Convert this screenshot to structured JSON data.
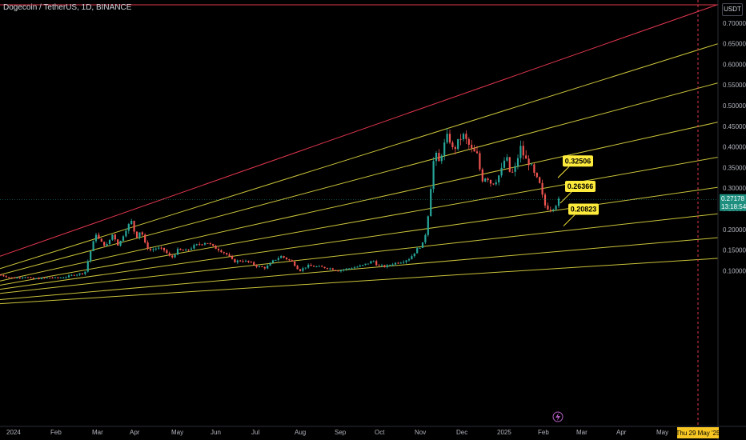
{
  "header": {
    "title": "Dogecoin / TetherUS, 1D, BINANCE",
    "unit": "USDT"
  },
  "colors": {
    "background": "#000000",
    "up": "#26a69a",
    "down": "#ef5350",
    "channel": "#c9c23a",
    "upper_line": "#e0374e",
    "cursor": "#e0374e",
    "annotation_bg": "#ffeb3b",
    "current_price_bg": "#1e8f7f",
    "date_badge_bg": "#f7c623"
  },
  "chart_data": {
    "type": "candlestick",
    "x_ticks": [
      "2024",
      "Feb",
      "Mar",
      "Apr",
      "May",
      "Jun",
      "Jul",
      "Aug",
      "Sep",
      "Oct",
      "Nov",
      "Dec",
      "2025",
      "Feb",
      "Mar",
      "Apr",
      "May"
    ],
    "y_ticks": [
      "0.70000",
      "0.65000",
      "0.60000",
      "0.55000",
      "0.50000",
      "0.45000",
      "0.40000",
      "0.35000",
      "0.30000",
      "0.25000",
      "0.20000",
      "0.15000",
      "0.10000"
    ],
    "ylim": [
      0.06,
      0.75
    ],
    "current_price": {
      "value": "0.27178",
      "countdown": "13:18:54"
    },
    "cursor_date": "Thu 29 May '25",
    "annotations": [
      {
        "label": "0.32506",
        "value": 0.32506
      },
      {
        "label": "0.26366",
        "value": 0.26366
      },
      {
        "label": "0.20823",
        "value": 0.20823
      }
    ],
    "trend_lines": [
      {
        "color": "upper",
        "start": 0.135,
        "end": 0.745
      },
      {
        "color": "channel",
        "start": 0.105,
        "end": 0.65
      },
      {
        "color": "channel",
        "start": 0.09,
        "end": 0.555
      },
      {
        "color": "channel",
        "start": 0.075,
        "end": 0.46
      },
      {
        "color": "channel",
        "start": 0.065,
        "end": 0.375
      },
      {
        "color": "channel",
        "start": 0.055,
        "end": 0.302
      },
      {
        "color": "channel",
        "start": 0.045,
        "end": 0.238
      },
      {
        "color": "channel",
        "start": 0.03,
        "end": 0.18
      },
      {
        "color": "channel",
        "start": 0.02,
        "end": 0.13
      }
    ],
    "price_path": [
      [
        0,
        0.09
      ],
      [
        16,
        0.082
      ],
      [
        31,
        0.086
      ],
      [
        40,
        0.08
      ],
      [
        55,
        0.082
      ],
      [
        64,
        0.084
      ],
      [
        70,
        0.082
      ],
      [
        82,
        0.085
      ],
      [
        92,
        0.09
      ],
      [
        106,
        0.095
      ],
      [
        112,
        0.14
      ],
      [
        120,
        0.19
      ],
      [
        125,
        0.17
      ],
      [
        133,
        0.16
      ],
      [
        141,
        0.19
      ],
      [
        148,
        0.16
      ],
      [
        157,
        0.2
      ],
      [
        164,
        0.22
      ],
      [
        170,
        0.18
      ],
      [
        176,
        0.2
      ],
      [
        182,
        0.16
      ],
      [
        188,
        0.15
      ],
      [
        196,
        0.155
      ],
      [
        205,
        0.15
      ],
      [
        214,
        0.13
      ],
      [
        222,
        0.15
      ],
      [
        232,
        0.148
      ],
      [
        243,
        0.16
      ],
      [
        250,
        0.165
      ],
      [
        258,
        0.17
      ],
      [
        266,
        0.158
      ],
      [
        275,
        0.15
      ],
      [
        283,
        0.14
      ],
      [
        292,
        0.122
      ],
      [
        302,
        0.125
      ],
      [
        312,
        0.12
      ],
      [
        322,
        0.11
      ],
      [
        332,
        0.107
      ],
      [
        342,
        0.125
      ],
      [
        351,
        0.135
      ],
      [
        357,
        0.13
      ],
      [
        366,
        0.12
      ],
      [
        374,
        0.1
      ],
      [
        384,
        0.112
      ],
      [
        394,
        0.11
      ],
      [
        404,
        0.108
      ],
      [
        414,
        0.105
      ],
      [
        422,
        0.1
      ],
      [
        432,
        0.104
      ],
      [
        442,
        0.108
      ],
      [
        452,
        0.112
      ],
      [
        462,
        0.12
      ],
      [
        466,
        0.125
      ],
      [
        472,
        0.112
      ],
      [
        482,
        0.11
      ],
      [
        492,
        0.118
      ],
      [
        502,
        0.122
      ],
      [
        512,
        0.13
      ],
      [
        520,
        0.15
      ],
      [
        528,
        0.165
      ],
      [
        533,
        0.2
      ],
      [
        538,
        0.3
      ],
      [
        543,
        0.39
      ],
      [
        548,
        0.36
      ],
      [
        554,
        0.4
      ],
      [
        560,
        0.43
      ],
      [
        566,
        0.39
      ],
      [
        572,
        0.41
      ],
      [
        578,
        0.43
      ],
      [
        584,
        0.41
      ],
      [
        590,
        0.39
      ],
      [
        596,
        0.38
      ],
      [
        602,
        0.32
      ],
      [
        608,
        0.33
      ],
      [
        614,
        0.31
      ],
      [
        620,
        0.32
      ],
      [
        626,
        0.34
      ],
      [
        632,
        0.38
      ],
      [
        638,
        0.33
      ],
      [
        644,
        0.35
      ],
      [
        650,
        0.4
      ],
      [
        656,
        0.37
      ],
      [
        662,
        0.36
      ],
      [
        668,
        0.33
      ],
      [
        674,
        0.31
      ],
      [
        680,
        0.26
      ],
      [
        686,
        0.25
      ],
      [
        692,
        0.255
      ],
      [
        698,
        0.27
      ]
    ]
  }
}
